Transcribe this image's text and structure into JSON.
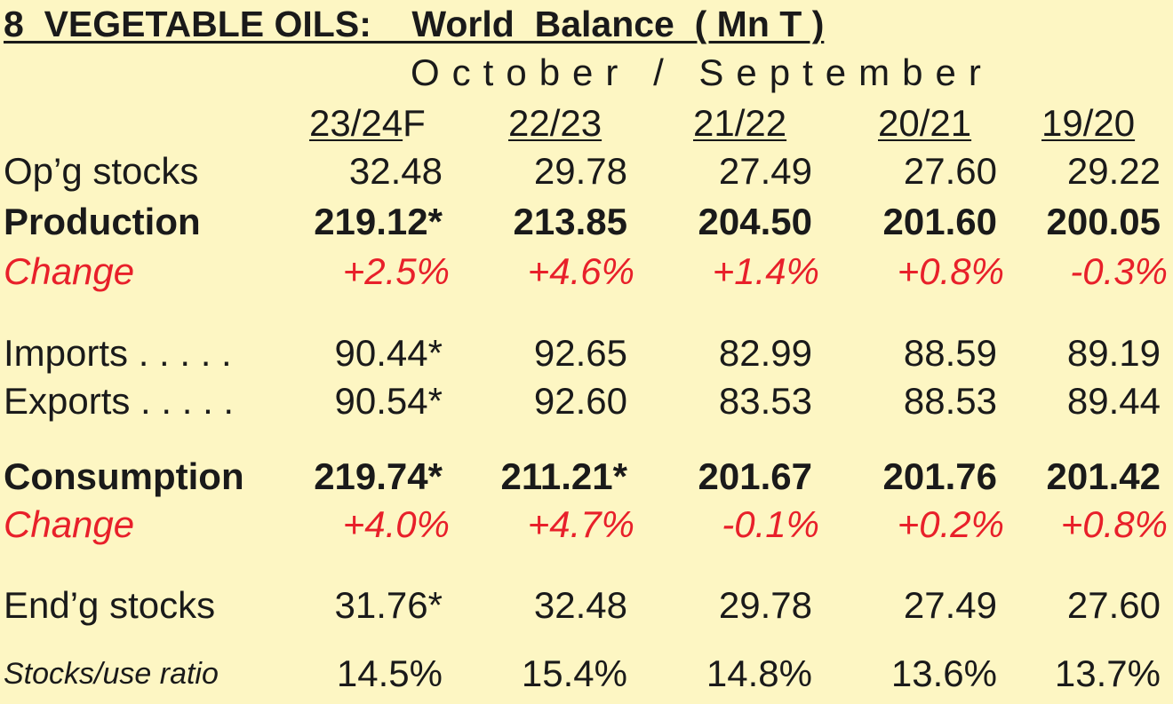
{
  "title": "8  VEGETABLE OILS:    World  Balance  ( Mn T )",
  "period": "October / September",
  "columns": [
    {
      "year": "23/24",
      "suffix": "F"
    },
    {
      "year": "22/23",
      "suffix": ""
    },
    {
      "year": "21/22",
      "suffix": ""
    },
    {
      "year": "20/21",
      "suffix": ""
    },
    {
      "year": "19/20",
      "suffix": ""
    }
  ],
  "rows": [
    {
      "label": "Op’g stocks",
      "values": [
        "32.48",
        "29.78",
        "27.49",
        "27.60",
        "29.22"
      ]
    },
    {
      "label": "Production",
      "values": [
        "219.12*",
        "213.85",
        "204.50",
        "201.60",
        "200.05"
      ]
    },
    {
      "label": "Change",
      "values": [
        "+2.5%",
        "+4.6%",
        "+1.4%",
        "+0.8%",
        "-0.3%"
      ]
    },
    {
      "label": "Imports . . . . .",
      "values": [
        "90.44*",
        "92.65",
        "82.99",
        "88.59",
        "89.19"
      ]
    },
    {
      "label": "Exports . . . . .",
      "values": [
        "90.54*",
        "92.60",
        "83.53",
        "88.53",
        "89.44"
      ]
    },
    {
      "label": "Consumption",
      "values": [
        "219.74*",
        "211.21*",
        "201.67",
        "201.76",
        "201.42"
      ]
    },
    {
      "label": "Change",
      "values": [
        "+4.0%",
        "+4.7%",
        "-0.1%",
        "+0.2%",
        "+0.8%"
      ]
    },
    {
      "label": "End’g stocks",
      "values": [
        "31.76*",
        "32.48",
        "29.78",
        "27.49",
        "27.60"
      ]
    },
    {
      "label": "Stocks/use ratio",
      "values": [
        "14.5%",
        "15.4%",
        "14.8%",
        "13.6%",
        "13.7%"
      ]
    }
  ],
  "colors": {
    "background": "#fdf6c3",
    "text": "#1a1a1a",
    "change": "#e8202a"
  }
}
